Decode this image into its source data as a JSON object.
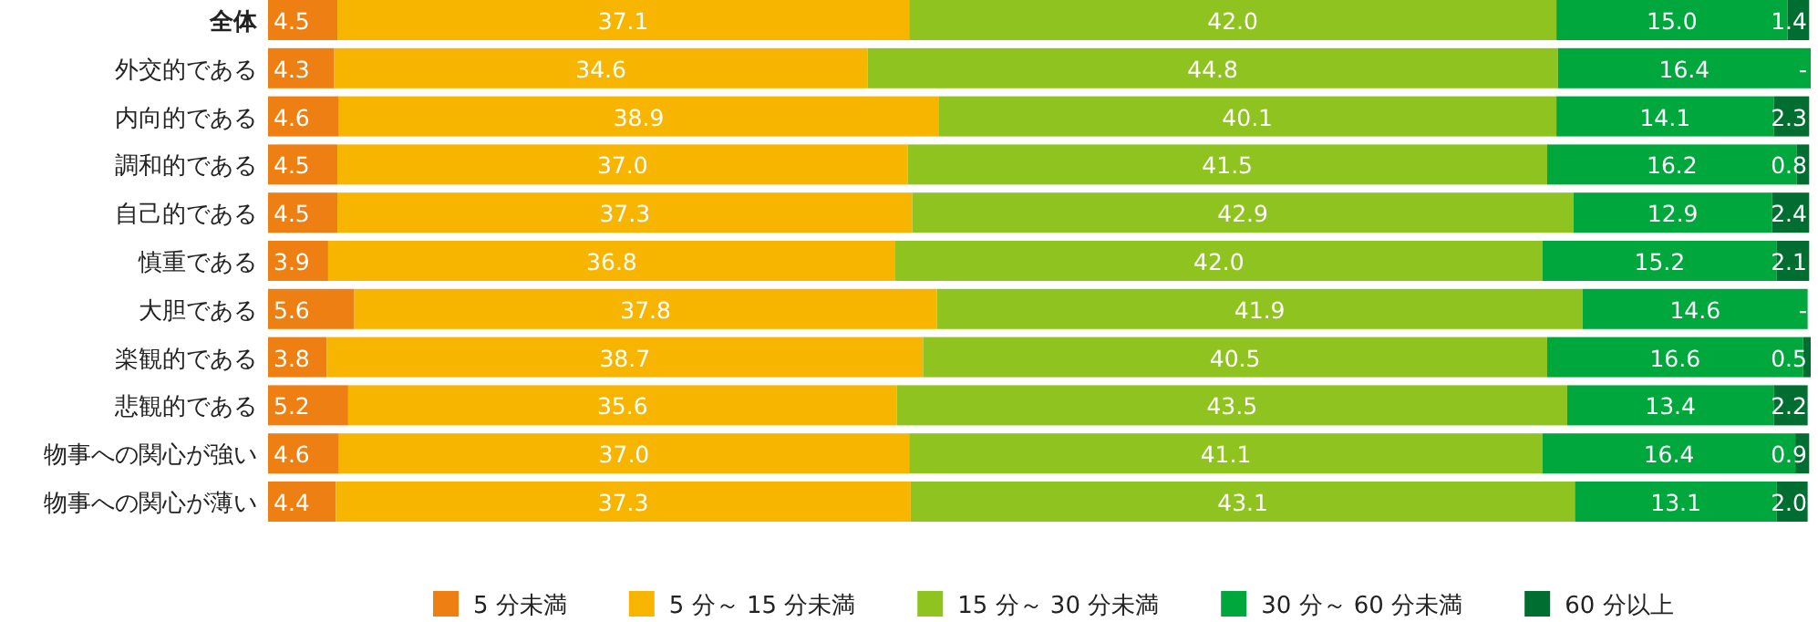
{
  "chart_data": {
    "type": "bar",
    "orientation": "horizontal",
    "stacked": true,
    "legend": "bottom",
    "categories": [
      "全体",
      "外交的である",
      "内向的である",
      "調和的である",
      "自己的である",
      "慎重である",
      "大胆である",
      "楽観的である",
      "悲観的である",
      "物事への関心が強い",
      "物事への関心が薄い"
    ],
    "series": [
      {
        "name": "5 分未満",
        "color": "#ee7f12",
        "values": [
          4.5,
          4.3,
          4.6,
          4.5,
          4.5,
          3.9,
          5.6,
          3.8,
          5.2,
          4.6,
          4.4
        ],
        "value_labels": [
          "4.5",
          "4.3",
          "4.6",
          "4.5",
          "4.5",
          "3.9",
          "5.6",
          "3.8",
          "5.2",
          "4.6",
          "4.4"
        ]
      },
      {
        "name": "5 分～ 15 分未満",
        "color": "#f8b500",
        "values": [
          37.1,
          34.6,
          38.9,
          37.0,
          37.3,
          36.8,
          37.8,
          38.7,
          35.6,
          37.0,
          37.3
        ],
        "value_labels": [
          "37.1",
          "34.6",
          "38.9",
          "37.0",
          "37.3",
          "36.8",
          "37.8",
          "38.7",
          "35.6",
          "37.0",
          "37.3"
        ]
      },
      {
        "name": "15 分～ 30 分未満",
        "color": "#8fc31f",
        "values": [
          42.0,
          44.8,
          40.1,
          41.5,
          42.9,
          42.0,
          41.9,
          40.5,
          43.5,
          41.1,
          43.1
        ],
        "value_labels": [
          "42.0",
          "44.8",
          "40.1",
          "41.5",
          "42.9",
          "42.0",
          "41.9",
          "40.5",
          "43.5",
          "41.1",
          "43.1"
        ]
      },
      {
        "name": "30 分～ 60 分未満",
        "color": "#00a73c",
        "values": [
          15.0,
          16.4,
          14.1,
          16.2,
          12.9,
          15.2,
          14.6,
          16.6,
          13.4,
          16.4,
          13.1
        ],
        "value_labels": [
          "15.0",
          "16.4",
          "14.1",
          "16.2",
          "12.9",
          "15.2",
          "14.6",
          "16.6",
          "13.4",
          "16.4",
          "13.1"
        ]
      },
      {
        "name": "60 分以上",
        "color": "#006e30",
        "values": [
          1.4,
          null,
          2.3,
          0.8,
          2.4,
          2.1,
          null,
          0.5,
          2.2,
          0.9,
          2.0
        ],
        "value_labels": [
          "1.4",
          "-",
          "2.3",
          "0.8",
          "2.4",
          "2.1",
          "-",
          "0.5",
          "2.2",
          "0.9",
          "2.0"
        ]
      }
    ]
  }
}
